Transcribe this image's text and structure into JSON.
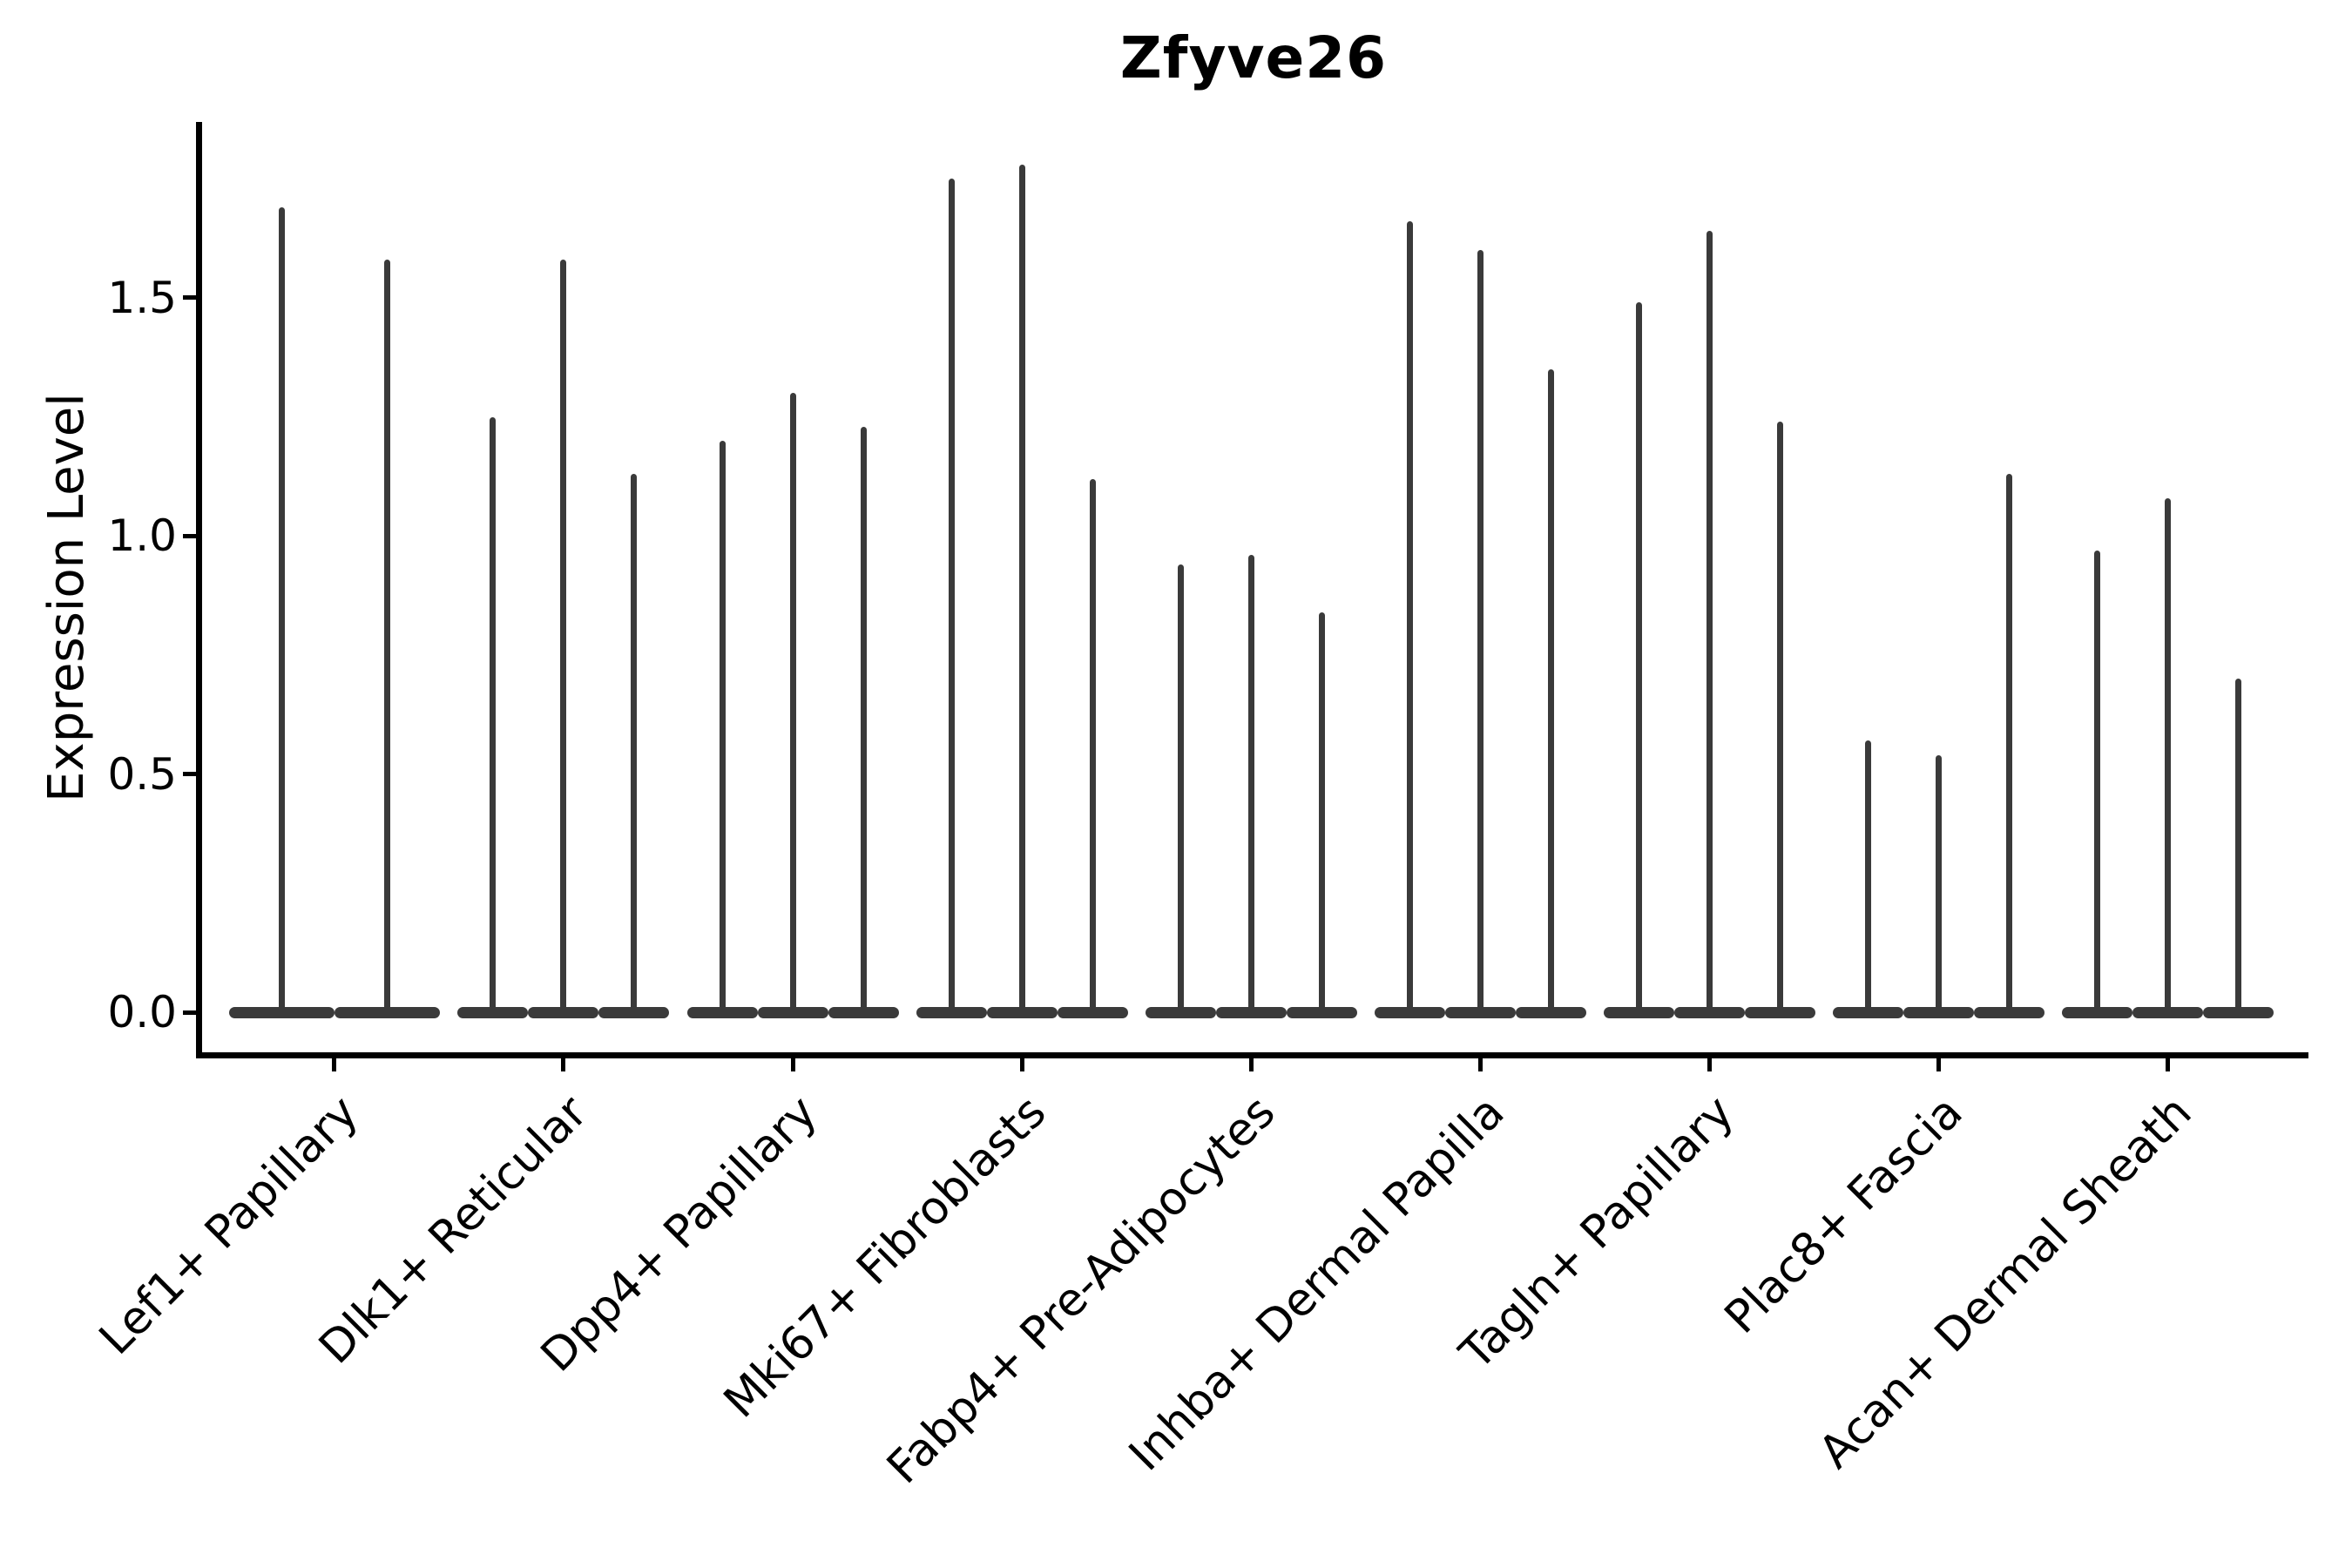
{
  "chart_data": {
    "type": "violin",
    "title": "Zfyve26",
    "xlabel": "",
    "ylabel": "Expression Level",
    "grid": false,
    "legend_position": "none",
    "ylim": [
      -0.09,
      1.87
    ],
    "ytick_values": [
      0.0,
      0.5,
      1.0,
      1.5
    ],
    "ytick_labels": [
      "0.0",
      "0.5",
      "1.0",
      "1.5"
    ],
    "violin_color": "#3a3a3a",
    "axis_color": "#000000",
    "categories": [
      "Lef1+ Papillary",
      "Dlk1+ Reticular",
      "Dpp4+ Papillary",
      "Mki67+ Fibroblasts",
      "Fabp4+ Pre-Adipocytes",
      "Inhba+ Dermal Papilla",
      "Tagln+ Papillary",
      "Plac8+ Fascia",
      "Acan+ Dermal Sheath"
    ],
    "series": [
      {
        "category": "Lef1+ Papillary",
        "violin_max_values": [
          1.69,
          1.58
        ],
        "baseline_value": 0.0
      },
      {
        "category": "Dlk1+ Reticular",
        "violin_max_values": [
          1.25,
          1.58,
          1.13
        ],
        "baseline_value": 0.0
      },
      {
        "category": "Dpp4+ Papillary",
        "violin_max_values": [
          1.2,
          1.3,
          1.23
        ],
        "baseline_value": 0.0
      },
      {
        "category": "Mki67+ Fibroblasts",
        "violin_max_values": [
          1.75,
          1.78,
          1.12
        ],
        "baseline_value": 0.0
      },
      {
        "category": "Fabp4+ Pre-Adipocytes",
        "violin_max_values": [
          0.94,
          0.96,
          0.84
        ],
        "baseline_value": 0.0
      },
      {
        "category": "Inhba+ Dermal Papilla",
        "violin_max_values": [
          1.66,
          1.6,
          1.35
        ],
        "baseline_value": 0.0
      },
      {
        "category": "Tagln+ Papillary",
        "violin_max_values": [
          1.49,
          1.64,
          1.24
        ],
        "baseline_value": 0.0
      },
      {
        "category": "Plac8+ Fascia",
        "violin_max_values": [
          0.57,
          0.54,
          1.13
        ],
        "baseline_value": 0.0
      },
      {
        "category": "Acan+ Dermal Sheath",
        "violin_max_values": [
          0.97,
          1.08,
          0.7
        ],
        "baseline_value": 0.0
      }
    ]
  }
}
